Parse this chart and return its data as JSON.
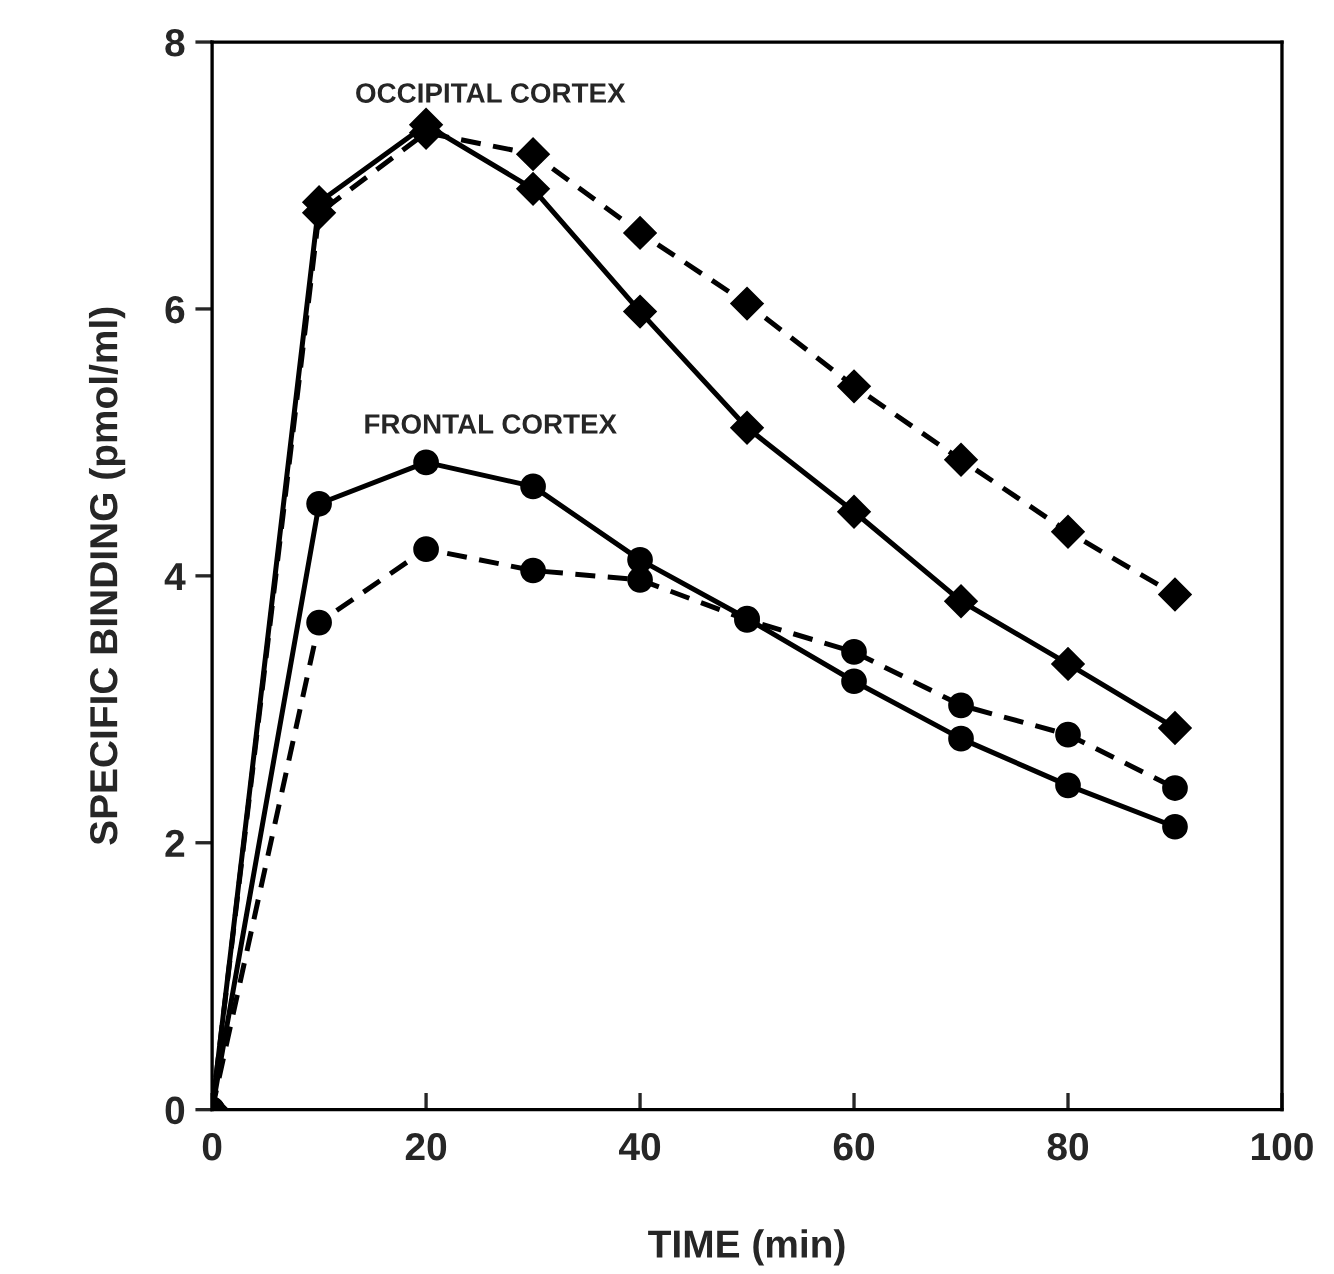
{
  "chart_data": {
    "type": "line",
    "xlabel": "TIME (min)",
    "ylabel": "SPECIFIC BINDING (pmol/ml)",
    "x": [
      0,
      10,
      20,
      30,
      40,
      50,
      60,
      70,
      80,
      90
    ],
    "series": [
      {
        "color": "#000000",
        "marker": "diamond",
        "line_style": "solid",
        "values": [
          0,
          6.8,
          7.38,
          6.9,
          5.98,
          5.11,
          4.48,
          3.81,
          3.34,
          2.86
        ]
      },
      {
        "color": "#000000",
        "marker": "diamond",
        "line_style": "dashed",
        "values": [
          0,
          6.72,
          7.32,
          7.16,
          6.57,
          6.04,
          5.42,
          4.87,
          4.33,
          3.86
        ]
      },
      {
        "color": "#000000",
        "marker": "circle",
        "line_style": "solid",
        "values": [
          0,
          4.54,
          4.85,
          4.67,
          4.12,
          3.68,
          3.21,
          2.78,
          2.43,
          2.12
        ]
      },
      {
        "color": "#000000",
        "marker": "circle",
        "line_style": "dashed",
        "values": [
          0,
          3.65,
          4.2,
          4.04,
          3.97,
          3.67,
          3.43,
          3.03,
          2.81,
          2.41
        ]
      }
    ],
    "annotations": [
      "OCCIPITAL CORTEX",
      "FRONTAL CORTEX"
    ],
    "xlim": [
      0,
      100
    ],
    "xticks": [
      0,
      20,
      40,
      60,
      80,
      100
    ],
    "ylim": [
      0,
      8
    ],
    "yticks": [
      0,
      2,
      4,
      6,
      8
    ],
    "grid": false,
    "legend": false
  }
}
